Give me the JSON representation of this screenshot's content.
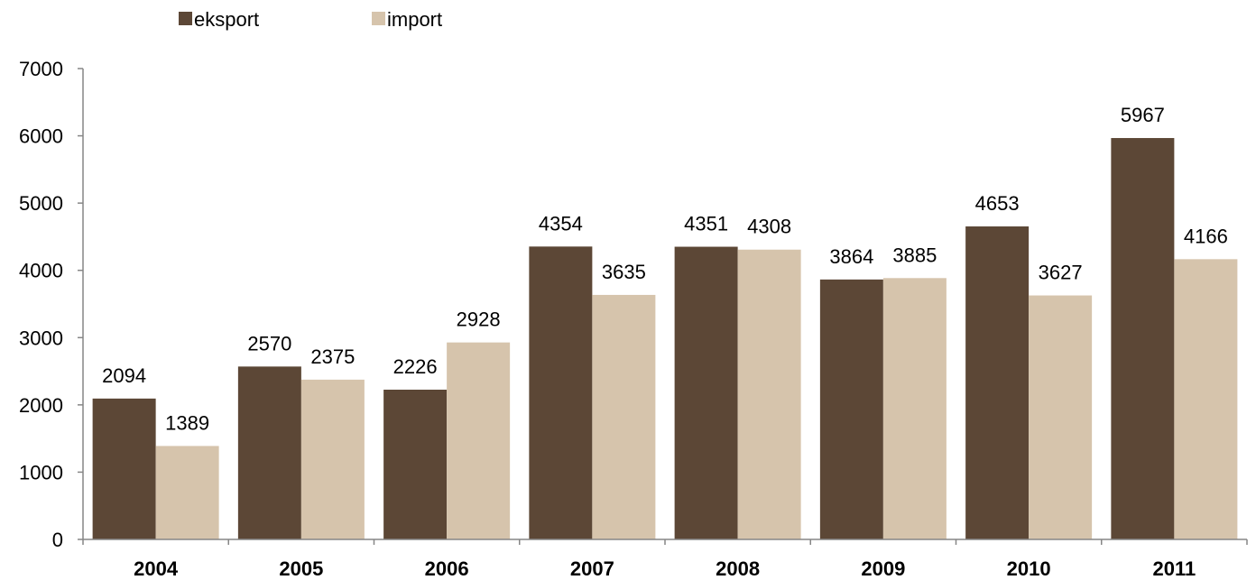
{
  "chart_data": {
    "type": "bar",
    "categories": [
      "2004",
      "2005",
      "2006",
      "2007",
      "2008",
      "2009",
      "2010",
      "2011"
    ],
    "series": [
      {
        "name": "eksport",
        "color": "#5c4736",
        "values": [
          2094,
          2570,
          2226,
          4354,
          4351,
          3864,
          4653,
          5967
        ],
        "labels": [
          "2094",
          "2570",
          "2226",
          "4354",
          "4351",
          "3864",
          "4653",
          "5967"
        ]
      },
      {
        "name": "import",
        "color": "#d6c4ac",
        "values": [
          1389,
          2375,
          2928,
          3635,
          4308,
          3885,
          3627,
          4166
        ],
        "labels": [
          "1389",
          "2375",
          "2928",
          "3635",
          "4308",
          "3885",
          "3627",
          "4166"
        ]
      }
    ],
    "yticks": [
      "0",
      "1000",
      "2000",
      "3000",
      "4000",
      "5000",
      "6000",
      "7000"
    ],
    "ylim": [
      0,
      7000
    ],
    "grid": false,
    "legend_position": "top-left"
  }
}
